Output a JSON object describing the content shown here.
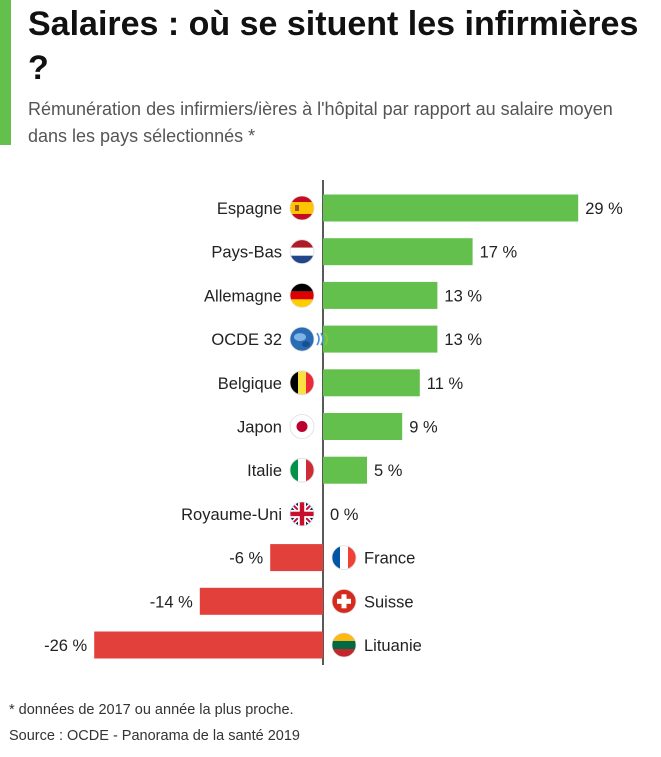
{
  "title": "Salaires : où se situent les infirmières ?",
  "subtitle": "Rémunération des infirmiers/ières à l'hôpital par rapport au salaire moyen dans les pays sélectionnés *",
  "footnote": "* données de 2017 ou année la plus proche.",
  "source": "Source : OCDE - Panorama de la santé 2019",
  "colors": {
    "positive": "#63c04c",
    "negative": "#e2403a",
    "accent": "#63c04c"
  },
  "chart_data": {
    "type": "bar",
    "orientation": "horizontal",
    "value_suffix": " %",
    "categories": [
      "Espagne",
      "Pays-Bas",
      "Allemagne",
      "OCDE 32",
      "Belgique",
      "Japon",
      "Italie",
      "Royaume-Uni",
      "France",
      "Suisse",
      "Lituanie"
    ],
    "values": [
      29,
      17,
      13,
      13,
      11,
      9,
      5,
      0,
      -6,
      -14,
      -26
    ],
    "flags": [
      "spain-flag-icon",
      "netherlands-flag-icon",
      "germany-flag-icon",
      "oecd-logo-icon",
      "belgium-flag-icon",
      "japan-flag-icon",
      "italy-flag-icon",
      "uk-flag-icon",
      "france-flag-icon",
      "switzerland-flag-icon",
      "lithuania-flag-icon"
    ],
    "xlim": [
      -26,
      29
    ],
    "grid": false
  }
}
